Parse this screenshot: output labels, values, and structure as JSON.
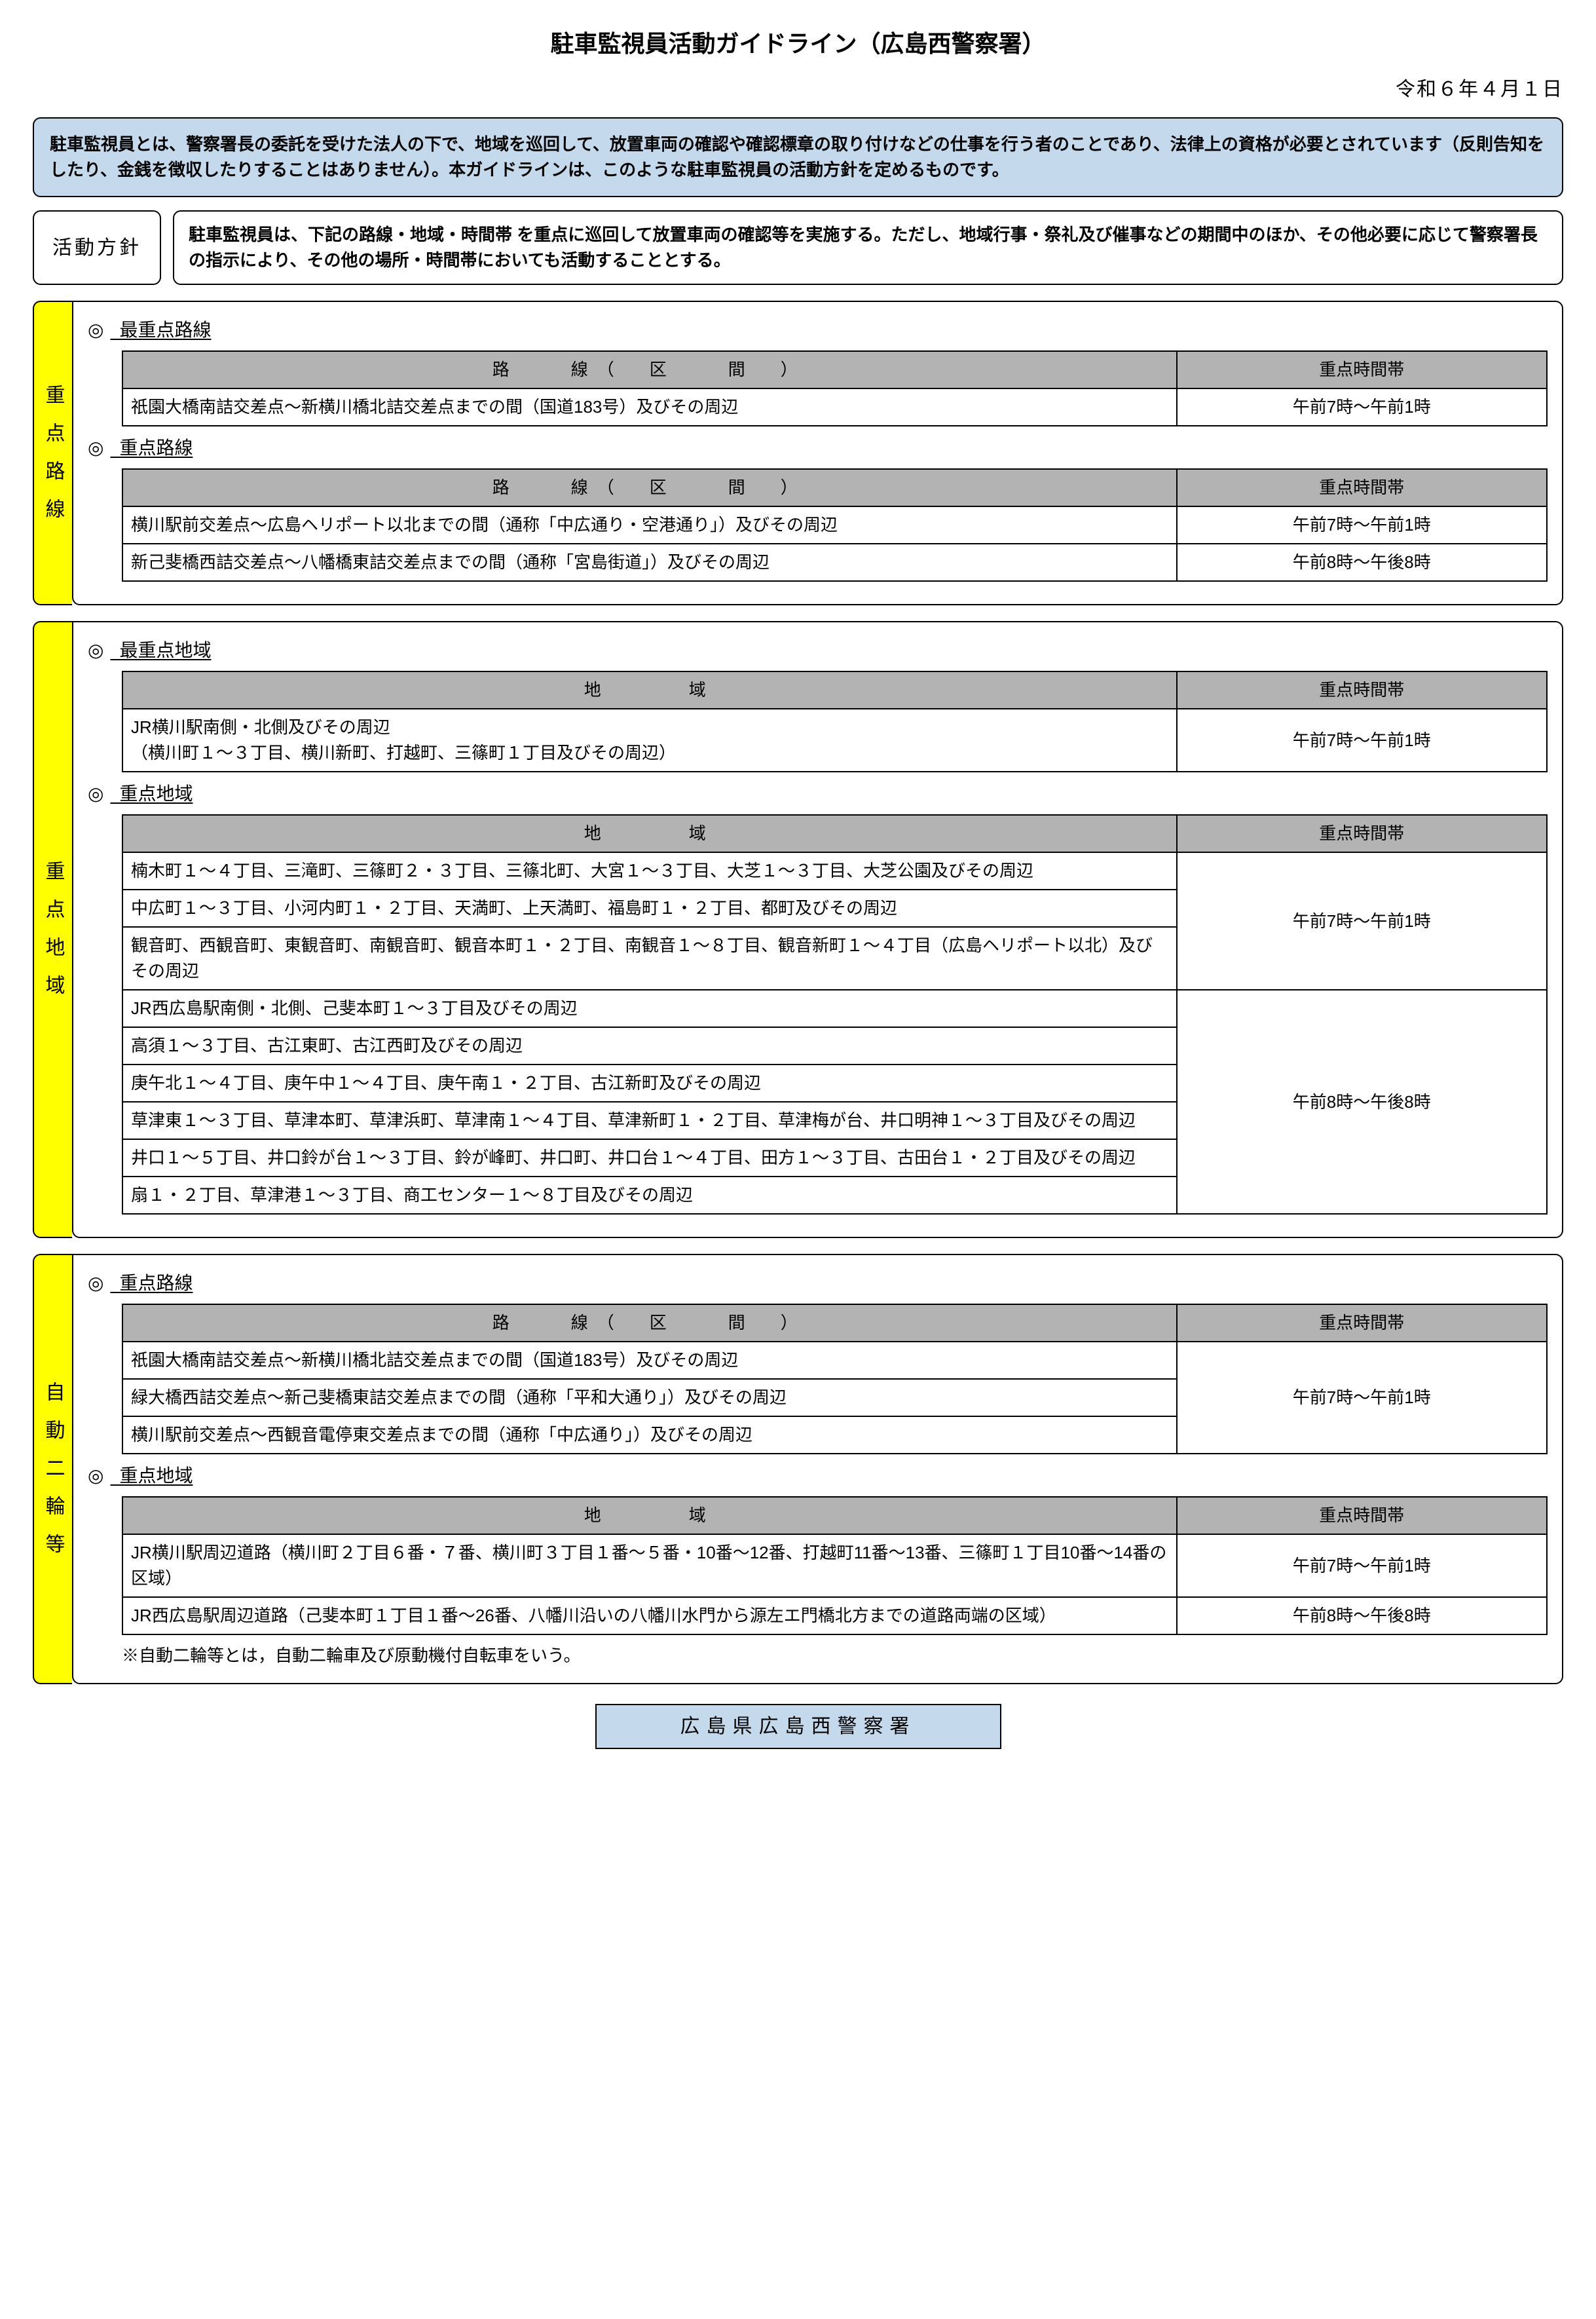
{
  "title": "駐車監視員活動ガイドライン（広島西警察署）",
  "date": "令和６年４月１日",
  "intro": "駐車監視員とは、警察署長の委託を受けた法人の下で、地域を巡回して、放置車両の確認や確認標章の取り付けなどの仕事を行う者のことであり、法律上の資格が必要とされています（反則告知をしたり、金銭を徴収したりすることはありません）。本ガイドラインは、このような駐車監視員の活動方針を定めるものです。",
  "policy": {
    "label": "活動方針",
    "text": "駐車監視員は、下記の路線・地域・時間帯 を重点に巡回して放置車両の確認等を実施する。ただし、地域行事・祭礼及び催事などの期間中のほか、その他必要に応じて警察署長の指示により、その他の場所・時間帯においても活動することとする。"
  },
  "sections": {
    "routes": {
      "sideLabel": "重点路線",
      "parts": [
        {
          "heading": "最重点路線",
          "header1": "路　　線（　区　　間　）",
          "header2": "重点時間帯",
          "rows": [
            {
              "r": "祇園大橋南詰交差点～新横川橋北詰交差点までの間（国道183号）及びその周辺",
              "t": "午前7時～午前1時",
              "span": 1
            }
          ]
        },
        {
          "heading": "重点路線",
          "header1": "路　　線（　区　　間　）",
          "header2": "重点時間帯",
          "rows": [
            {
              "r": "横川駅前交差点～広島ヘリポート以北までの間（通称「中広通り・空港通り」）及びその周辺",
              "t": "午前7時～午前1時",
              "span": 1
            },
            {
              "r": "新己斐橋西詰交差点～八幡橋東詰交差点までの間（通称「宮島街道」）及びその周辺",
              "t": "午前8時～午後8時",
              "span": 1
            }
          ]
        }
      ]
    },
    "areas": {
      "sideLabel": "重点地域",
      "parts": [
        {
          "heading": "最重点地域",
          "header1": "地　　　域",
          "header2": "重点時間帯",
          "rows": [
            {
              "r": "JR横川駅南側・北側及びその周辺\n（横川町１～３丁目、横川新町、打越町、三篠町１丁目及びその周辺）",
              "t": "午前7時～午前1時",
              "span": 1
            }
          ]
        },
        {
          "heading": "重点地域",
          "header1": "地　　　域",
          "header2": "重点時間帯",
          "rows": [
            {
              "r": "楠木町１～４丁目、三滝町、三篠町２・３丁目、三篠北町、大宮１～３丁目、大芝１～３丁目、大芝公園及びその周辺",
              "t": "午前7時～午前1時",
              "span": 3
            },
            {
              "r": "中広町１～３丁目、小河内町１・２丁目、天満町、上天満町、福島町１・２丁目、都町及びその周辺"
            },
            {
              "r": "観音町、西観音町、東観音町、南観音町、観音本町１・２丁目、南観音１～８丁目、観音新町１～４丁目（広島ヘリポート以北）及びその周辺"
            },
            {
              "r": "JR西広島駅南側・北側、己斐本町１～３丁目及びその周辺",
              "t": "午前8時～午後8時",
              "span": 6
            },
            {
              "r": "高須１～３丁目、古江東町、古江西町及びその周辺"
            },
            {
              "r": "庚午北１～４丁目、庚午中１～４丁目、庚午南１・２丁目、古江新町及びその周辺"
            },
            {
              "r": "草津東１～３丁目、草津本町、草津浜町、草津南１～４丁目、草津新町１・２丁目、草津梅が台、井口明神１～３丁目及びその周辺"
            },
            {
              "r": "井口１～５丁目、井口鈴が台１～３丁目、鈴が峰町、井口町、井口台１～４丁目、田方１～３丁目、古田台１・２丁目及びその周辺"
            },
            {
              "r": "扇１・２丁目、草津港１～３丁目、商工センター１～８丁目及びその周辺"
            }
          ]
        }
      ]
    },
    "motorcycles": {
      "sideLabel": "自動二輪等",
      "parts": [
        {
          "heading": "重点路線",
          "header1": "路　　線（　区　　間　）",
          "header2": "重点時間帯",
          "rows": [
            {
              "r": "祇園大橋南詰交差点～新横川橋北詰交差点までの間（国道183号）及びその周辺",
              "t": "午前7時～午前1時",
              "span": 3
            },
            {
              "r": "緑大橋西詰交差点～新己斐橋東詰交差点までの間（通称「平和大通り」）及びその周辺"
            },
            {
              "r": "横川駅前交差点～西観音電停東交差点までの間（通称「中広通り」）及びその周辺"
            }
          ]
        },
        {
          "heading": "重点地域",
          "header1": "地　　　域",
          "header2": "重点時間帯",
          "rows": [
            {
              "r": "JR横川駅周辺道路（横川町２丁目６番・７番、横川町３丁目１番～５番・10番～12番、打越町11番～13番、三篠町１丁目10番～14番の区域）",
              "t": "午前7時～午前1時",
              "span": 1
            },
            {
              "r": "JR西広島駅周辺道路（己斐本町１丁目１番～26番、八幡川沿いの八幡川水門から源左エ門橋北方までの道路両端の区域）",
              "t": "午前8時～午後8時",
              "span": 1
            }
          ]
        }
      ],
      "footnote": "※自動二輪等とは，自動二輪車及び原動機付自転車をいう。"
    }
  },
  "footer": "広島県広島西警察署"
}
